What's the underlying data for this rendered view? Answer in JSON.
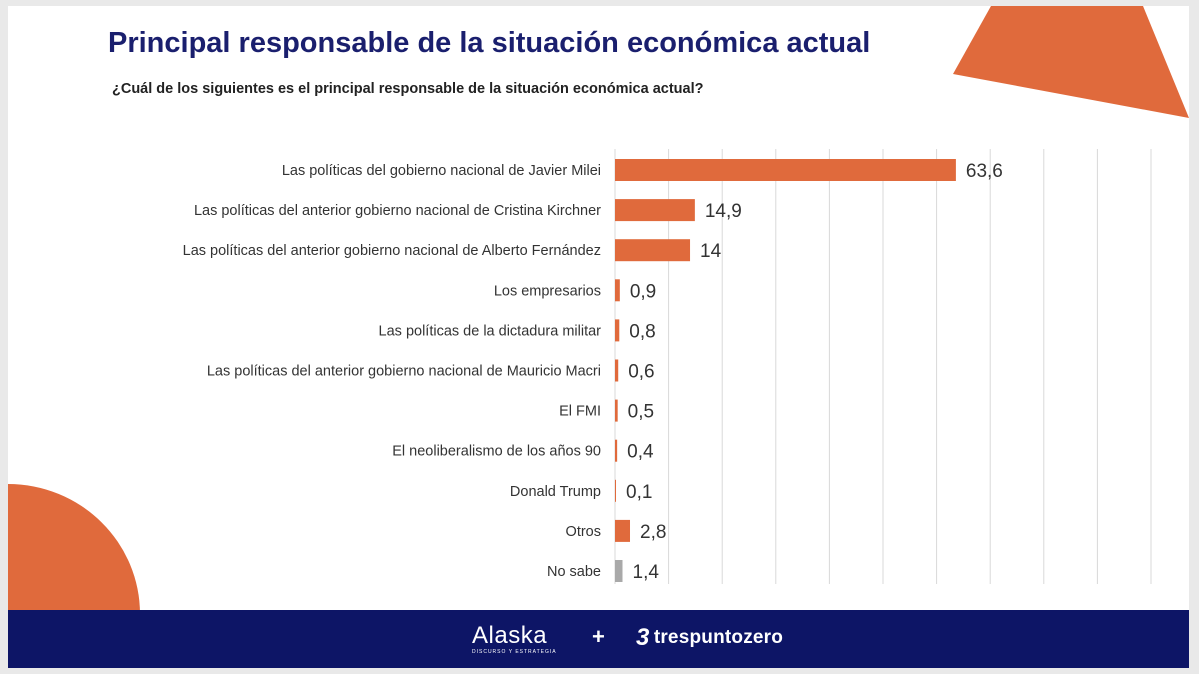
{
  "title": "Principal responsable de la situación económica actual",
  "subtitle": "¿Cuál de los siguientes es el principal responsable de la situación económica actual?",
  "colors": {
    "bar": "#e06a3c",
    "bar_nosabe": "#a9a9a9",
    "footer": "#0d1566",
    "title": "#1a1f6e",
    "deco": "#e06a3c"
  },
  "footer": {
    "logo_alaska": "Alaska",
    "logo_alaska_tagline": "DISCURSO Y ESTRATEGIA",
    "plus": "+",
    "logo_tpz_mark": "3",
    "logo_tpz_word": "trespuntozero"
  },
  "chart_data": {
    "type": "bar",
    "orientation": "horizontal",
    "title": "Principal responsable de la situación económica actual",
    "subtitle": "¿Cuál de los siguientes es el principal responsable de la situación económica actual?",
    "categories": [
      "Las políticas del gobierno nacional de Javier Milei",
      "Las políticas del anterior gobierno nacional de Cristina Kirchner",
      "Las políticas del anterior gobierno nacional de Alberto Fernández",
      "Los empresarios",
      "Las políticas de la dictadura militar",
      "Las políticas del anterior gobierno nacional de Mauricio Macri",
      "El FMI",
      "El neoliberalismo de los años 90",
      "Donald Trump",
      "Otros",
      "No sabe"
    ],
    "values": [
      63.6,
      14.9,
      14,
      0.9,
      0.8,
      0.6,
      0.5,
      0.4,
      0.1,
      2.8,
      1.4
    ],
    "labels": [
      "63,6",
      "14,9",
      "14",
      "0,9",
      "0,8",
      "0,6",
      "0,5",
      "0,4",
      "0,1",
      "2,8",
      "1,4"
    ],
    "xlim": [
      0,
      100
    ],
    "grid": true,
    "legend": "none"
  }
}
